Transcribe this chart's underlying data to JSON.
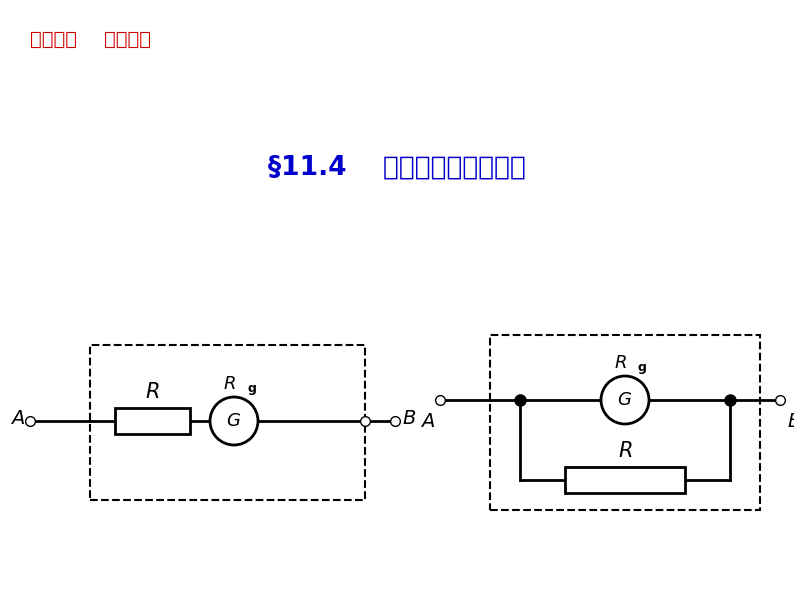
{
  "title_chapter": "第十一章    恒定电流",
  "title_chapter_color": "#cc0000",
  "title_section": "§11.4    串联电路和并联电路",
  "title_section_color": "#0000cc",
  "bg_color": "#ffffff",
  "fig_width": 7.94,
  "fig_height": 5.96,
  "dpi": 100
}
